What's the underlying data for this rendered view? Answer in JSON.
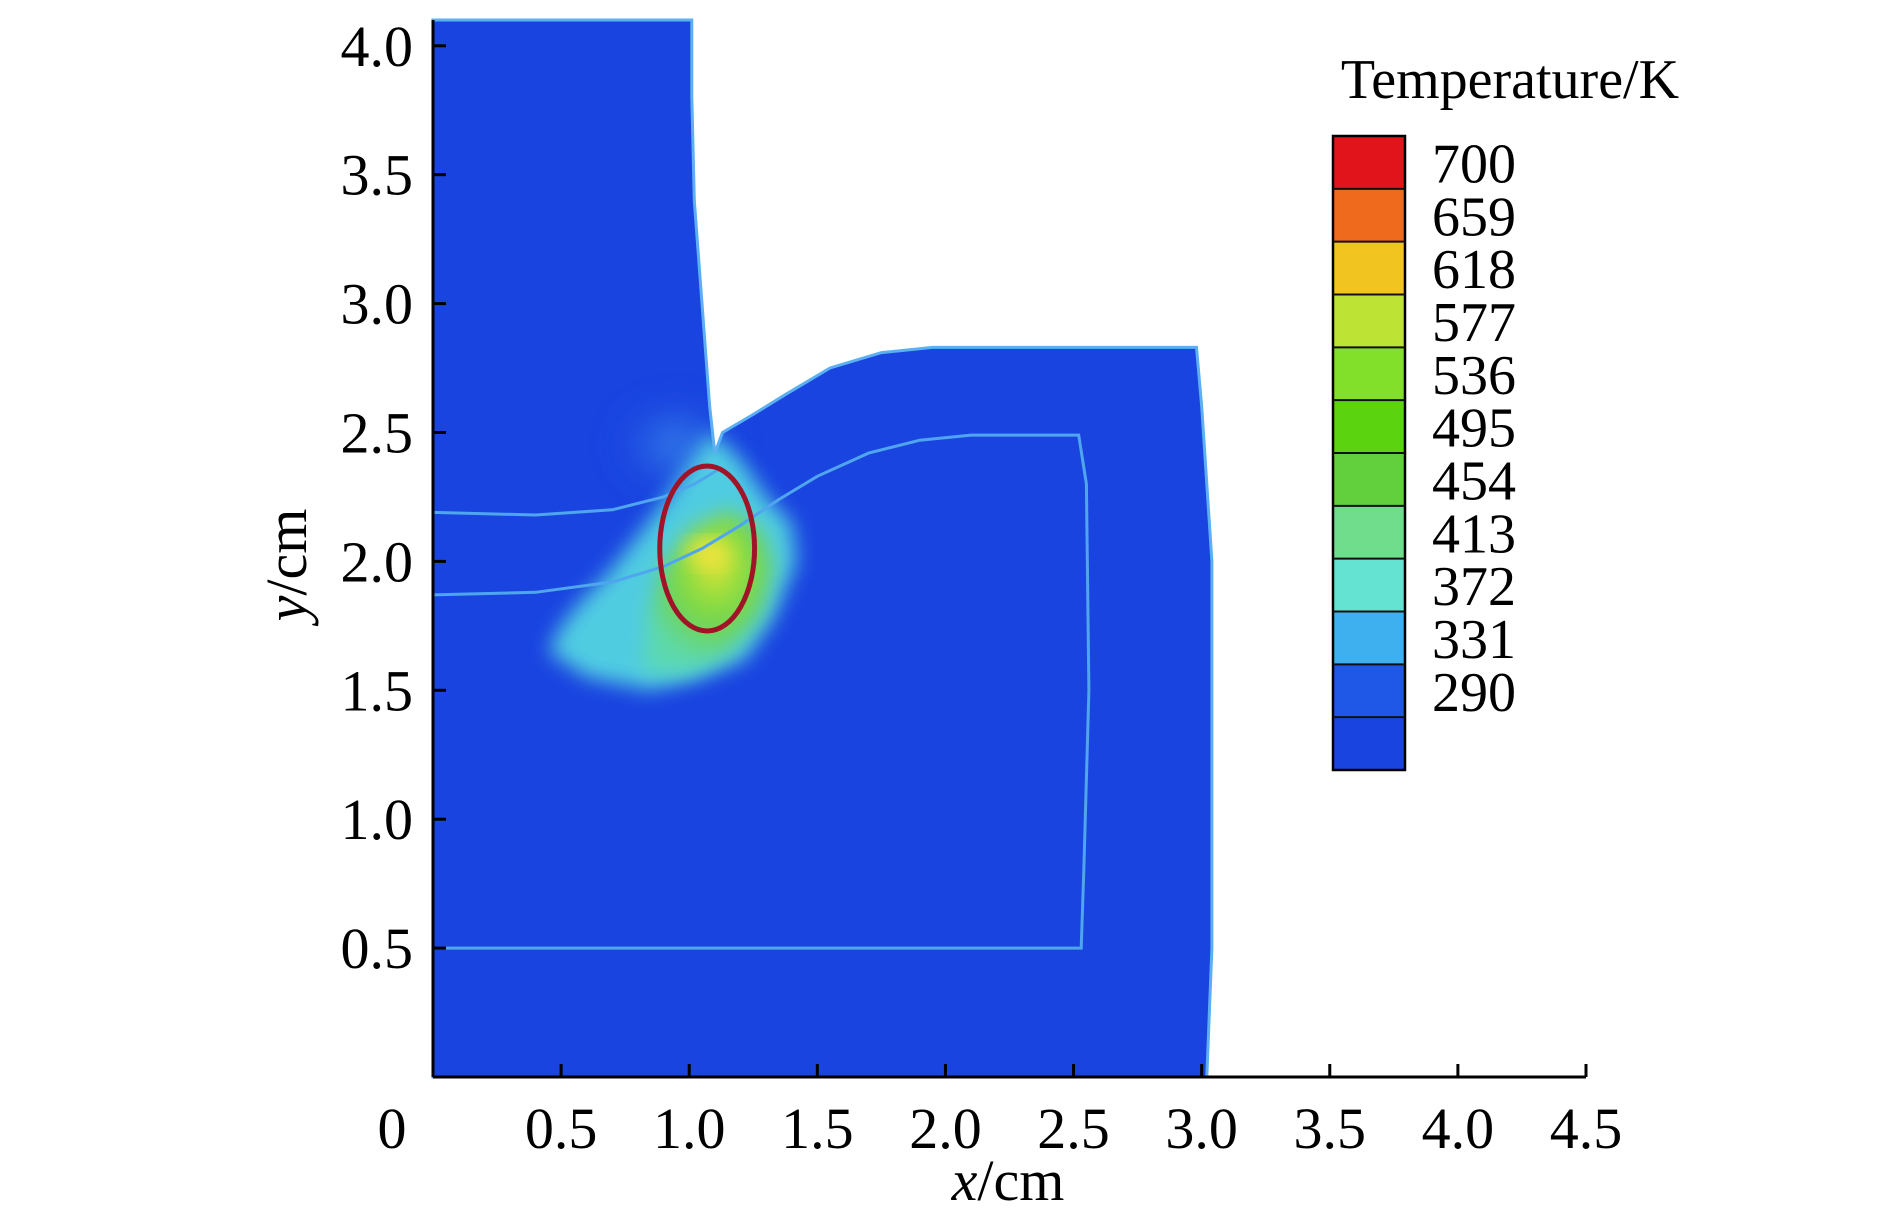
{
  "chart_data": {
    "type": "heatmap",
    "title": "",
    "xlabel": {
      "var": "x",
      "unit": "/cm"
    },
    "ylabel": {
      "var": "y",
      "unit": "/cm"
    },
    "xlim": [
      0,
      4.5
    ],
    "ylim": [
      0,
      4.1
    ],
    "x_ticks": [
      "0",
      "0.5",
      "1.0",
      "1.5",
      "2.0",
      "2.5",
      "3.0",
      "3.5",
      "4.0",
      "4.5"
    ],
    "y_ticks": [
      "0.5",
      "1.0",
      "1.5",
      "2.0",
      "2.5",
      "3.0",
      "3.5",
      "4.0"
    ],
    "grid": false,
    "colorbar": {
      "title": "Temperature/K",
      "levels": [
        700,
        659,
        618,
        577,
        536,
        495,
        454,
        413,
        372,
        331,
        290
      ],
      "colors": [
        "#e0141a",
        "#f06a1e",
        "#f2c41f",
        "#bde335",
        "#82e02a",
        "#5bd40f",
        "#62cf3c",
        "#6fdd8c",
        "#64e2d2",
        "#3fb0ef",
        "#1f57e6",
        "#1a44e0"
      ]
    },
    "field_background_color": "#1a44e0",
    "hotspot": {
      "peak_temperature_K": 620,
      "center_x_cm": 1.07,
      "center_y_cm": 2.05,
      "marker_color": "#a01428"
    }
  }
}
